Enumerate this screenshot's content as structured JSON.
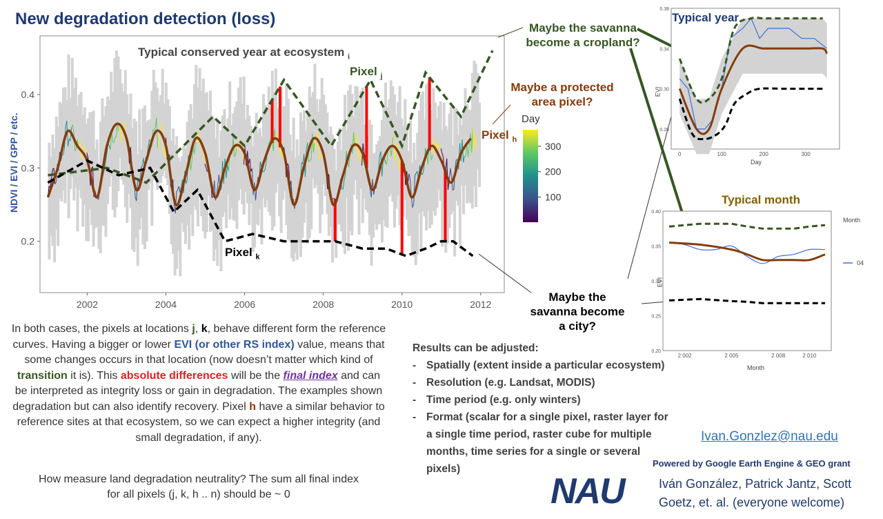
{
  "title": "New degradation detection (loss)",
  "main_chart": {
    "ylabel": "NDVI / EVI / GPP / etc.",
    "x_ticks": [
      "2002",
      "2004",
      "2006",
      "2008",
      "2010",
      "2012"
    ],
    "y_ticks": [
      "0.2",
      "0.3",
      "0.4"
    ],
    "label_conserved": "Typical conserved year at ecosystem",
    "label_conserved_sub": "i",
    "label_pixel_j": "Pixel",
    "label_pixel_j_sub": "j",
    "label_pixel_k": "Pixel",
    "label_pixel_k_sub": "k",
    "label_pixel_h": "Pixel",
    "label_pixel_h_sub": "h",
    "legend_title": "Day",
    "legend_ticks": [
      "300",
      "200",
      "100"
    ]
  },
  "notes": {
    "cropland": "Maybe the savanna become a cropland?",
    "protected": "Maybe a protected area pixel?",
    "city": "Maybe the savanna become a city?"
  },
  "typical_year": {
    "title": "Typical year",
    "xlabel": "Day",
    "ylabel": "EVI",
    "x_ticks": [
      "0",
      "100",
      "200",
      "300"
    ],
    "y_ticks": [
      "0.26",
      "0.30",
      "0.34",
      "0.38"
    ]
  },
  "typical_month": {
    "title": "Typical month",
    "xlabel": "Month",
    "ylabel": "EVI",
    "legend_title": "Month",
    "legend_item": "04",
    "x_ticks": [
      "2 002",
      "2 005",
      "2 008",
      "2 010"
    ],
    "y_ticks": [
      "0.40",
      "0.35",
      "0.30",
      "0.25",
      "0.20"
    ]
  },
  "paragraph": {
    "p1": "In both cases, the pixels at locations",
    "j": "j",
    "comma": ",",
    "k": "k",
    "p2": ", behave different form the reference curves. Having a bigger or lower",
    "evi": "EVI (or other RS index)",
    "p3": "value, means that some changes occurs in that location (now doesn’t matter which kind of",
    "transition": "transition",
    "p4": "it is). This",
    "abs_diff": "absolute differences",
    "p5": "will be the",
    "final_index": "final index",
    "p6": "and can be interpreted as integrity loss or gain in degradation. The examples shown degradation but can also identify recovery. Pixel",
    "h": "h",
    "p7": "have a similar behavior to reference sites at that ecosystem, so we can expect a higher integrity (and small degradation, if any)."
  },
  "question": {
    "line1": "How measure land degradation neutrality? The sum all final index",
    "line2": "for all pixels (j, k, h .. n)  should be ~ 0"
  },
  "results": {
    "heading": "Results can be adjusted:",
    "items": [
      "Spatially (extent inside a particular ecosystem)",
      "Resolution (e.g. Landsat, MODIS)",
      "Time period (e.g. only winters)",
      "Format (scalar for a single pixel, raster layer for a single time period, raster cube for multiple months, time series for a single or several pixels)"
    ]
  },
  "email": "Ivan.Gonzlez@nau.edu",
  "powered_by": "Powered by Google Earth Engine & GEO grant",
  "logo": "NAU",
  "authors_line1": "Iván González, Patrick Jantz, Scott",
  "authors_line2": "Goetz, et. al. (everyone welcome)",
  "colors": {
    "reference": "#843c0c",
    "pixel_j": "#375623",
    "pixel_k": "#000000",
    "difference": "#ff0000",
    "band": "#d3d3d3"
  },
  "chart_data": [
    {
      "type": "line",
      "title": "",
      "xlabel": "",
      "ylabel": "NDVI / EVI / GPP / etc.",
      "xlim": [
        2000.8,
        2012.6
      ],
      "ylim": [
        0.13,
        0.48
      ],
      "series": [
        {
          "name": "Typical conserved year at ecosystem i",
          "x": [
            2001.0,
            2001.25,
            2001.5,
            2001.75,
            2002.0,
            2002.25,
            2002.5,
            2002.75,
            2003.0,
            2003.25,
            2003.5,
            2003.75,
            2004.0,
            2004.25,
            2004.5,
            2004.75,
            2005.0,
            2005.25,
            2005.5,
            2005.75,
            2006.0,
            2006.25,
            2006.5,
            2006.75,
            2007.0,
            2007.25,
            2007.5,
            2007.75,
            2008.0,
            2008.25,
            2008.5,
            2008.75,
            2009.0,
            2009.25,
            2009.5,
            2009.75,
            2010.0,
            2010.25,
            2010.5,
            2010.75,
            2011.0,
            2011.25,
            2011.5,
            2011.75
          ],
          "y": [
            0.26,
            0.3,
            0.35,
            0.33,
            0.31,
            0.26,
            0.33,
            0.36,
            0.34,
            0.27,
            0.31,
            0.35,
            0.33,
            0.25,
            0.29,
            0.34,
            0.32,
            0.26,
            0.3,
            0.33,
            0.32,
            0.27,
            0.31,
            0.34,
            0.32,
            0.25,
            0.3,
            0.34,
            0.32,
            0.25,
            0.29,
            0.33,
            0.32,
            0.27,
            0.31,
            0.33,
            0.31,
            0.26,
            0.3,
            0.33,
            0.31,
            0.28,
            0.32,
            0.34
          ]
        },
        {
          "name": "Pixel j",
          "x": [
            2001.0,
            2002.5,
            2003.5,
            2005.2,
            2006.0,
            2007.0,
            2008.2,
            2009.2,
            2010.0,
            2010.6,
            2011.5,
            2012.3
          ],
          "y": [
            0.29,
            0.3,
            0.28,
            0.37,
            0.33,
            0.42,
            0.33,
            0.42,
            0.33,
            0.43,
            0.37,
            0.46
          ]
        },
        {
          "name": "Pixel k",
          "x": [
            2001.0,
            2002.0,
            2002.8,
            2003.6,
            2004.2,
            2004.8,
            2005.5,
            2006.2,
            2007.0,
            2007.6,
            2008.3,
            2009.0,
            2009.6,
            2010.1,
            2010.6,
            2011.0,
            2011.3,
            2011.8
          ],
          "y": [
            0.28,
            0.31,
            0.29,
            0.3,
            0.24,
            0.27,
            0.2,
            0.21,
            0.2,
            0.2,
            0.2,
            0.19,
            0.19,
            0.18,
            0.19,
            0.2,
            0.2,
            0.18
          ]
        }
      ],
      "x_ticks": [
        2002,
        2004,
        2006,
        2008,
        2010,
        2012
      ],
      "y_ticks": [
        0.2,
        0.3,
        0.4
      ],
      "colorbar": {
        "name": "Day",
        "range": [
          1,
          365
        ],
        "ticks": [
          100,
          200,
          300
        ]
      }
    },
    {
      "type": "line",
      "title": "Typical year",
      "xlabel": "Day",
      "ylabel": "EVI",
      "xlim": [
        -20,
        380
      ],
      "ylim": [
        0.24,
        0.38
      ],
      "series": [
        {
          "name": "",
          "x": [
            0,
            40,
            70,
            100,
            150,
            200,
            250,
            300,
            340,
            350
          ],
          "y": [
            0.3,
            0.26,
            0.26,
            0.3,
            0.34,
            0.34,
            0.34,
            0.34,
            0.34,
            0.335
          ]
        },
        {
          "name": "",
          "x": [
            0,
            40,
            70,
            100,
            130,
            170,
            200,
            250,
            300,
            340
          ],
          "y": [
            0.33,
            0.29,
            0.29,
            0.31,
            0.36,
            0.37,
            0.37,
            0.37,
            0.37,
            0.37
          ]
        },
        {
          "name": "",
          "x": [
            0,
            30,
            60,
            90,
            110,
            130,
            160,
            190,
            250,
            300,
            340
          ],
          "y": [
            0.29,
            0.255,
            0.25,
            0.255,
            0.265,
            0.285,
            0.295,
            0.3,
            0.3,
            0.3,
            0.3
          ]
        }
      ],
      "x_ticks": [
        0,
        100,
        200,
        300
      ],
      "y_ticks": [
        0.26,
        0.3,
        0.34,
        0.38
      ]
    },
    {
      "type": "line",
      "title": "Typical month",
      "xlabel": "Month",
      "ylabel": "EVI",
      "xlim": [
        2000.6,
        2011.4
      ],
      "ylim": [
        0.2,
        0.4
      ],
      "series": [
        {
          "name": "",
          "x": [
            2001,
            2003,
            2005,
            2006,
            2007,
            2008,
            2009,
            2010,
            2011
          ],
          "y": [
            0.378,
            0.382,
            0.382,
            0.378,
            0.375,
            0.375,
            0.375,
            0.378,
            0.38
          ]
        },
        {
          "name": "04",
          "x": [
            2001,
            2002,
            2003,
            2004,
            2005,
            2006,
            2007,
            2008,
            2009,
            2010,
            2011
          ],
          "y": [
            0.355,
            0.352,
            0.345,
            0.345,
            0.35,
            0.335,
            0.325,
            0.335,
            0.338,
            0.345,
            0.345
          ]
        },
        {
          "name": "",
          "x": [
            2001,
            2003,
            2005,
            2006,
            2007,
            2008,
            2009,
            2010,
            2011
          ],
          "y": [
            0.355,
            0.352,
            0.345,
            0.338,
            0.33,
            0.33,
            0.33,
            0.33,
            0.338
          ]
        },
        {
          "name": "",
          "x": [
            2001,
            2003,
            2005,
            2006,
            2007,
            2008,
            2009,
            2010,
            2011
          ],
          "y": [
            0.272,
            0.274,
            0.271,
            0.27,
            0.268,
            0.268,
            0.268,
            0.268,
            0.268
          ]
        }
      ],
      "x_ticks": [
        2002,
        2005,
        2008,
        2010
      ],
      "y_ticks": [
        0.2,
        0.25,
        0.3,
        0.35,
        0.4
      ]
    }
  ]
}
